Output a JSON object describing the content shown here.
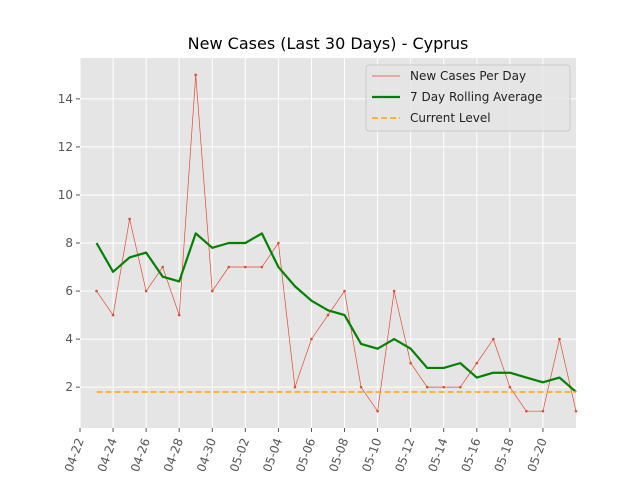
{
  "chart_data": {
    "type": "line",
    "title": "New Cases (Last 30 Days) - Cyprus",
    "xlabel": "",
    "ylabel": "",
    "x": [
      "04-23",
      "04-24",
      "04-25",
      "04-26",
      "04-27",
      "04-28",
      "04-29",
      "04-30",
      "05-01",
      "05-02",
      "05-03",
      "05-04",
      "05-05",
      "05-06",
      "05-07",
      "05-08",
      "05-09",
      "05-10",
      "05-11",
      "05-12",
      "05-13",
      "05-14",
      "05-15",
      "05-16",
      "05-17",
      "05-18",
      "05-19",
      "05-20",
      "05-21",
      "05-22"
    ],
    "series": [
      {
        "name": "New Cases Per Day",
        "color": "#e24a33",
        "style": "thin-line-with-dots",
        "values": [
          6,
          5,
          9,
          6,
          7,
          5,
          15,
          6,
          7,
          7,
          7,
          8,
          2,
          4,
          5,
          6,
          2,
          1,
          6,
          3,
          2,
          2,
          2,
          3,
          4,
          2,
          1,
          1,
          4,
          1
        ]
      },
      {
        "name": "7 Day Rolling Average",
        "color": "#008000",
        "style": "thick-line",
        "values": [
          8,
          6.8,
          7.4,
          7.6,
          6.6,
          6.4,
          8.4,
          7.8,
          8,
          8,
          8.4,
          7,
          6.2,
          5.6,
          5.2,
          5,
          3.8,
          3.6,
          4,
          3.6,
          2.8,
          2.8,
          3,
          2.4,
          2.6,
          2.6,
          2.4,
          2.2,
          2.4,
          1.8
        ]
      },
      {
        "name": "Current Level",
        "color": "#ffa500",
        "style": "dashed",
        "values": [
          1.8,
          1.8,
          1.8,
          1.8,
          1.8,
          1.8,
          1.8,
          1.8,
          1.8,
          1.8,
          1.8,
          1.8,
          1.8,
          1.8,
          1.8,
          1.8,
          1.8,
          1.8,
          1.8,
          1.8,
          1.8,
          1.8,
          1.8,
          1.8,
          1.8,
          1.8,
          1.8,
          1.8,
          1.8,
          1.8
        ]
      }
    ],
    "x_ticks": [
      "04-22",
      "04-24",
      "04-26",
      "04-28",
      "04-30",
      "05-02",
      "05-04",
      "05-06",
      "05-08",
      "05-10",
      "05-12",
      "05-14",
      "05-16",
      "05-18",
      "05-20"
    ],
    "y_ticks": [
      2,
      4,
      6,
      8,
      10,
      12,
      14
    ],
    "xlim": [
      "04-22",
      "05-22"
    ],
    "ylim": [
      0.3,
      15.7
    ],
    "grid": true,
    "legend": "top-right",
    "background": "#e5e5e5"
  }
}
